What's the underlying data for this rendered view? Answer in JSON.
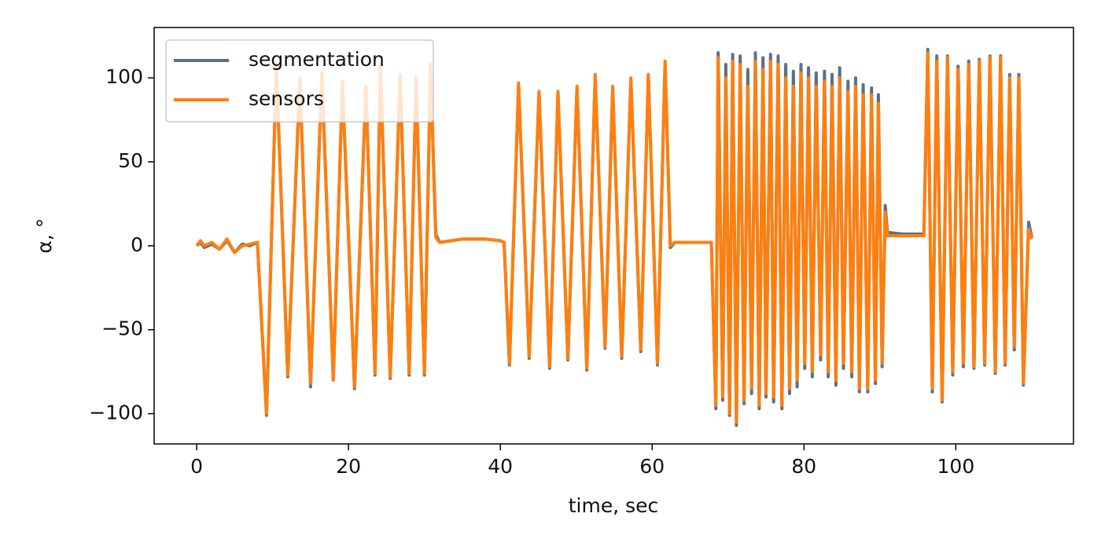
{
  "chart_data": {
    "type": "line",
    "xlabel": "time, sec",
    "ylabel": "α, °",
    "xlim": [
      -5.6,
      115.5
    ],
    "ylim": [
      -118,
      130
    ],
    "xticks": [
      0,
      20,
      40,
      60,
      80,
      100
    ],
    "yticks": [
      {
        "value": -100,
        "label": "−100"
      },
      {
        "value": -50,
        "label": "−50"
      },
      0,
      50,
      100
    ],
    "legend": "upper left",
    "x": [
      0,
      0.5,
      1,
      2,
      3,
      4,
      5,
      6,
      7,
      8,
      9.2,
      10.5,
      12,
      13.6,
      15,
      16.5,
      18,
      19.2,
      20.8,
      22.3,
      23.5,
      24.2,
      25.5,
      26.8,
      28,
      28.9,
      30,
      30.8,
      31.5,
      32,
      35,
      38,
      40,
      40.5,
      41.2,
      42.4,
      43.8,
      45.1,
      46.5,
      47.6,
      48.9,
      50.1,
      51.4,
      52.5,
      53.8,
      54.8,
      56,
      57.2,
      58.5,
      59.5,
      60.7,
      61.7,
      62.4,
      63,
      66,
      67.8,
      68.4,
      68.7,
      69.3,
      69.7,
      70.2,
      70.6,
      71.1,
      71.6,
      72.1,
      72.6,
      73.1,
      73.6,
      74.1,
      74.6,
      75,
      75.6,
      76,
      76.6,
      77.1,
      77.6,
      78.1,
      78.6,
      79.1,
      79.6,
      80.1,
      80.6,
      81.1,
      81.6,
      82.2,
      82.7,
      83.2,
      83.7,
      84.2,
      84.7,
      85.2,
      85.8,
      86.3,
      86.8,
      87.3,
      87.8,
      88.4,
      88.9,
      89.4,
      89.8,
      90.3,
      90.7,
      91,
      93,
      95.8,
      96.3,
      96.9,
      97.5,
      98.2,
      98.9,
      99.6,
      100.3,
      101,
      101.7,
      102.4,
      103.1,
      103.8,
      104.5,
      105.2,
      105.9,
      106.5,
      107.1,
      107.7,
      108.3,
      108.9,
      109.6,
      110
    ],
    "series": [
      {
        "name": "segmentation",
        "color": "#5a7089",
        "values": [
          0,
          2,
          -1,
          1,
          -2,
          3,
          -4,
          1,
          0,
          2,
          -101,
          107,
          -78,
          99,
          -84,
          102,
          -80,
          97,
          -85,
          94,
          -77,
          107,
          -79,
          101,
          -77,
          99,
          -77,
          107,
          7,
          2,
          4,
          4,
          3,
          2,
          -71,
          96,
          -67,
          91,
          -73,
          91,
          -68,
          94,
          -74,
          101,
          -61,
          94,
          -67,
          99,
          -63,
          101,
          -71,
          109,
          -1,
          2,
          2,
          2,
          -97,
          115,
          -92,
          108,
          -101,
          114,
          -107,
          113,
          -94,
          105,
          -88,
          115,
          -97,
          112,
          -90,
          114,
          -93,
          113,
          -97,
          108,
          -88,
          104,
          -84,
          108,
          -73,
          106,
          -78,
          103,
          -68,
          104,
          -78,
          102,
          -83,
          106,
          -73,
          98,
          -78,
          100,
          -87,
          96,
          -87,
          94,
          -82,
          90,
          -72,
          24,
          8,
          7,
          7,
          117,
          -87,
          113,
          -93,
          113,
          -77,
          107,
          -72,
          110,
          -73,
          111,
          -71,
          113,
          -76,
          113,
          -71,
          102,
          -62,
          102,
          -83,
          14,
          5
        ]
      },
      {
        "name": "sensors",
        "color": "#ff7f0e",
        "values": [
          0,
          3,
          0,
          2,
          -2,
          4,
          -4,
          0,
          1,
          2,
          -100,
          108,
          -77,
          100,
          -82,
          103,
          -80,
          98,
          -84,
          95,
          -76,
          108,
          -78,
          102,
          -76,
          100,
          -76,
          108,
          5,
          2,
          4,
          4,
          3,
          2,
          -70,
          97,
          -66,
          92,
          -72,
          92,
          -67,
          95,
          -73,
          102,
          -60,
          95,
          -66,
          100,
          -62,
          102,
          -70,
          110,
          0,
          2,
          2,
          2,
          -95,
          112,
          -90,
          100,
          -100,
          110,
          -105,
          108,
          -92,
          95,
          -85,
          110,
          -95,
          105,
          -88,
          110,
          -90,
          108,
          -95,
          100,
          -85,
          95,
          -80,
          103,
          -70,
          100,
          -75,
          95,
          -65,
          98,
          -75,
          95,
          -80,
          100,
          -70,
          92,
          -75,
          95,
          -85,
          90,
          -85,
          90,
          -80,
          85,
          -70,
          20,
          6,
          6,
          6,
          115,
          -85,
          110,
          -92,
          112,
          -75,
          105,
          -70,
          108,
          -72,
          110,
          -70,
          112,
          -75,
          112,
          -70,
          100,
          -60,
          100,
          -82,
          10,
          4
        ]
      }
    ]
  }
}
